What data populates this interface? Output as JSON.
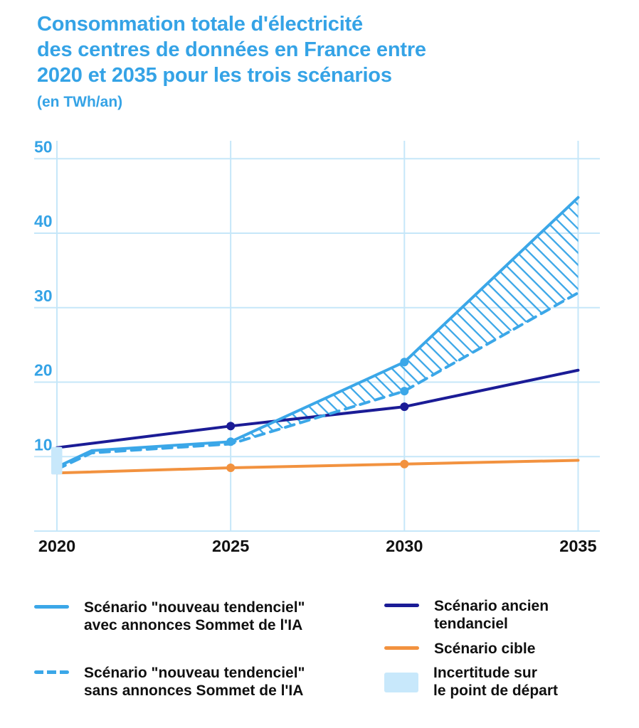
{
  "header": {
    "title_lines": [
      "Consommation totale d'électricité",
      "des centres de données en France entre",
      "2020 et 2035 pour les trois scénarios"
    ],
    "subtitle": "(en TWh/an)"
  },
  "colors": {
    "title_blue": "#35A3E6",
    "light_blue_line": "#3BA7E8",
    "dark_blue_line": "#1B1C96",
    "orange_line": "#F2923F",
    "gridline_blue": "#C6E7F9",
    "uncertainty_fill": "#C8E8FB",
    "x_label_color": "#111111"
  },
  "chart_data": {
    "type": "line",
    "title": "Consommation totale d'électricité des centres de données en France entre 2020 et 2035 pour les trois scénarios",
    "unit": "TWh/an",
    "xlim": [
      2020,
      2035
    ],
    "ylim": [
      0,
      50
    ],
    "x_ticks": [
      2020,
      2025,
      2030,
      2035
    ],
    "y_ticks": [
      10,
      20,
      30,
      40,
      50
    ],
    "grid": true,
    "series": [
      {
        "name": "Scénario \"nouveau tendenciel\" avec annonces Sommet de l'IA",
        "color": "#3BA7E8",
        "line_style": "solid",
        "points": [
          [
            2020,
            8.6
          ],
          [
            2021,
            10.8
          ],
          [
            2025,
            12
          ],
          [
            2030,
            22.7
          ],
          [
            2035,
            44.8
          ]
        ],
        "dots": [
          [
            2025,
            12
          ],
          [
            2030,
            22.7
          ]
        ]
      },
      {
        "name": "Scénario \"nouveau tendenciel\" sans annonces Sommet de l'IA",
        "color": "#3BA7E8",
        "line_style": "dashed",
        "points": [
          [
            2020,
            8.3
          ],
          [
            2021,
            10.5
          ],
          [
            2025,
            11.7
          ],
          [
            2030,
            18.8
          ],
          [
            2035,
            32
          ]
        ],
        "dots": [
          [
            2030,
            18.8
          ]
        ]
      },
      {
        "name": "Scénario ancien tendanciel",
        "color": "#1B1C96",
        "line_style": "solid",
        "points": [
          [
            2020,
            11.2
          ],
          [
            2025,
            14.1
          ],
          [
            2030,
            16.7
          ],
          [
            2035,
            21.6
          ]
        ],
        "dots": [
          [
            2025,
            14.1
          ],
          [
            2030,
            16.7
          ]
        ]
      },
      {
        "name": "Scénario cible",
        "color": "#F2923F",
        "line_style": "solid",
        "points": [
          [
            2020,
            7.8
          ],
          [
            2025,
            8.5
          ],
          [
            2030,
            9
          ],
          [
            2035,
            9.5
          ]
        ],
        "dots": [
          [
            2025,
            8.5
          ],
          [
            2030,
            9
          ]
        ]
      }
    ],
    "hatched_band": {
      "between_series": [
        0,
        1
      ],
      "from_x": 2025,
      "to_x": 2035
    },
    "uncertainty_box": {
      "x": 2020,
      "y_min": 7.6,
      "y_max": 11.3
    }
  },
  "legend": {
    "left": [
      {
        "swatch": "solid-line-light-blue",
        "color": "#3BA7E8",
        "label_lines": [
          "Scénario \"nouveau tendenciel\"",
          "avec annonces Sommet de l'IA"
        ]
      },
      {
        "swatch": "dashed-line-light-blue",
        "color": "#3BA7E8",
        "label_lines": [
          "Scénario \"nouveau tendenciel\"",
          "sans annonces Sommet de l'IA"
        ]
      }
    ],
    "right": [
      {
        "swatch": "solid-line-dark-blue",
        "color": "#1B1C96",
        "label_lines": [
          "Scénario ancien",
          "tendanciel"
        ]
      },
      {
        "swatch": "solid-line-orange",
        "color": "#F2923F",
        "label_lines": [
          "Scénario cible"
        ]
      },
      {
        "swatch": "box-light-blue",
        "color": "#C8E8FB",
        "label_lines": [
          "Incertitude sur",
          "le point de départ"
        ]
      }
    ]
  }
}
